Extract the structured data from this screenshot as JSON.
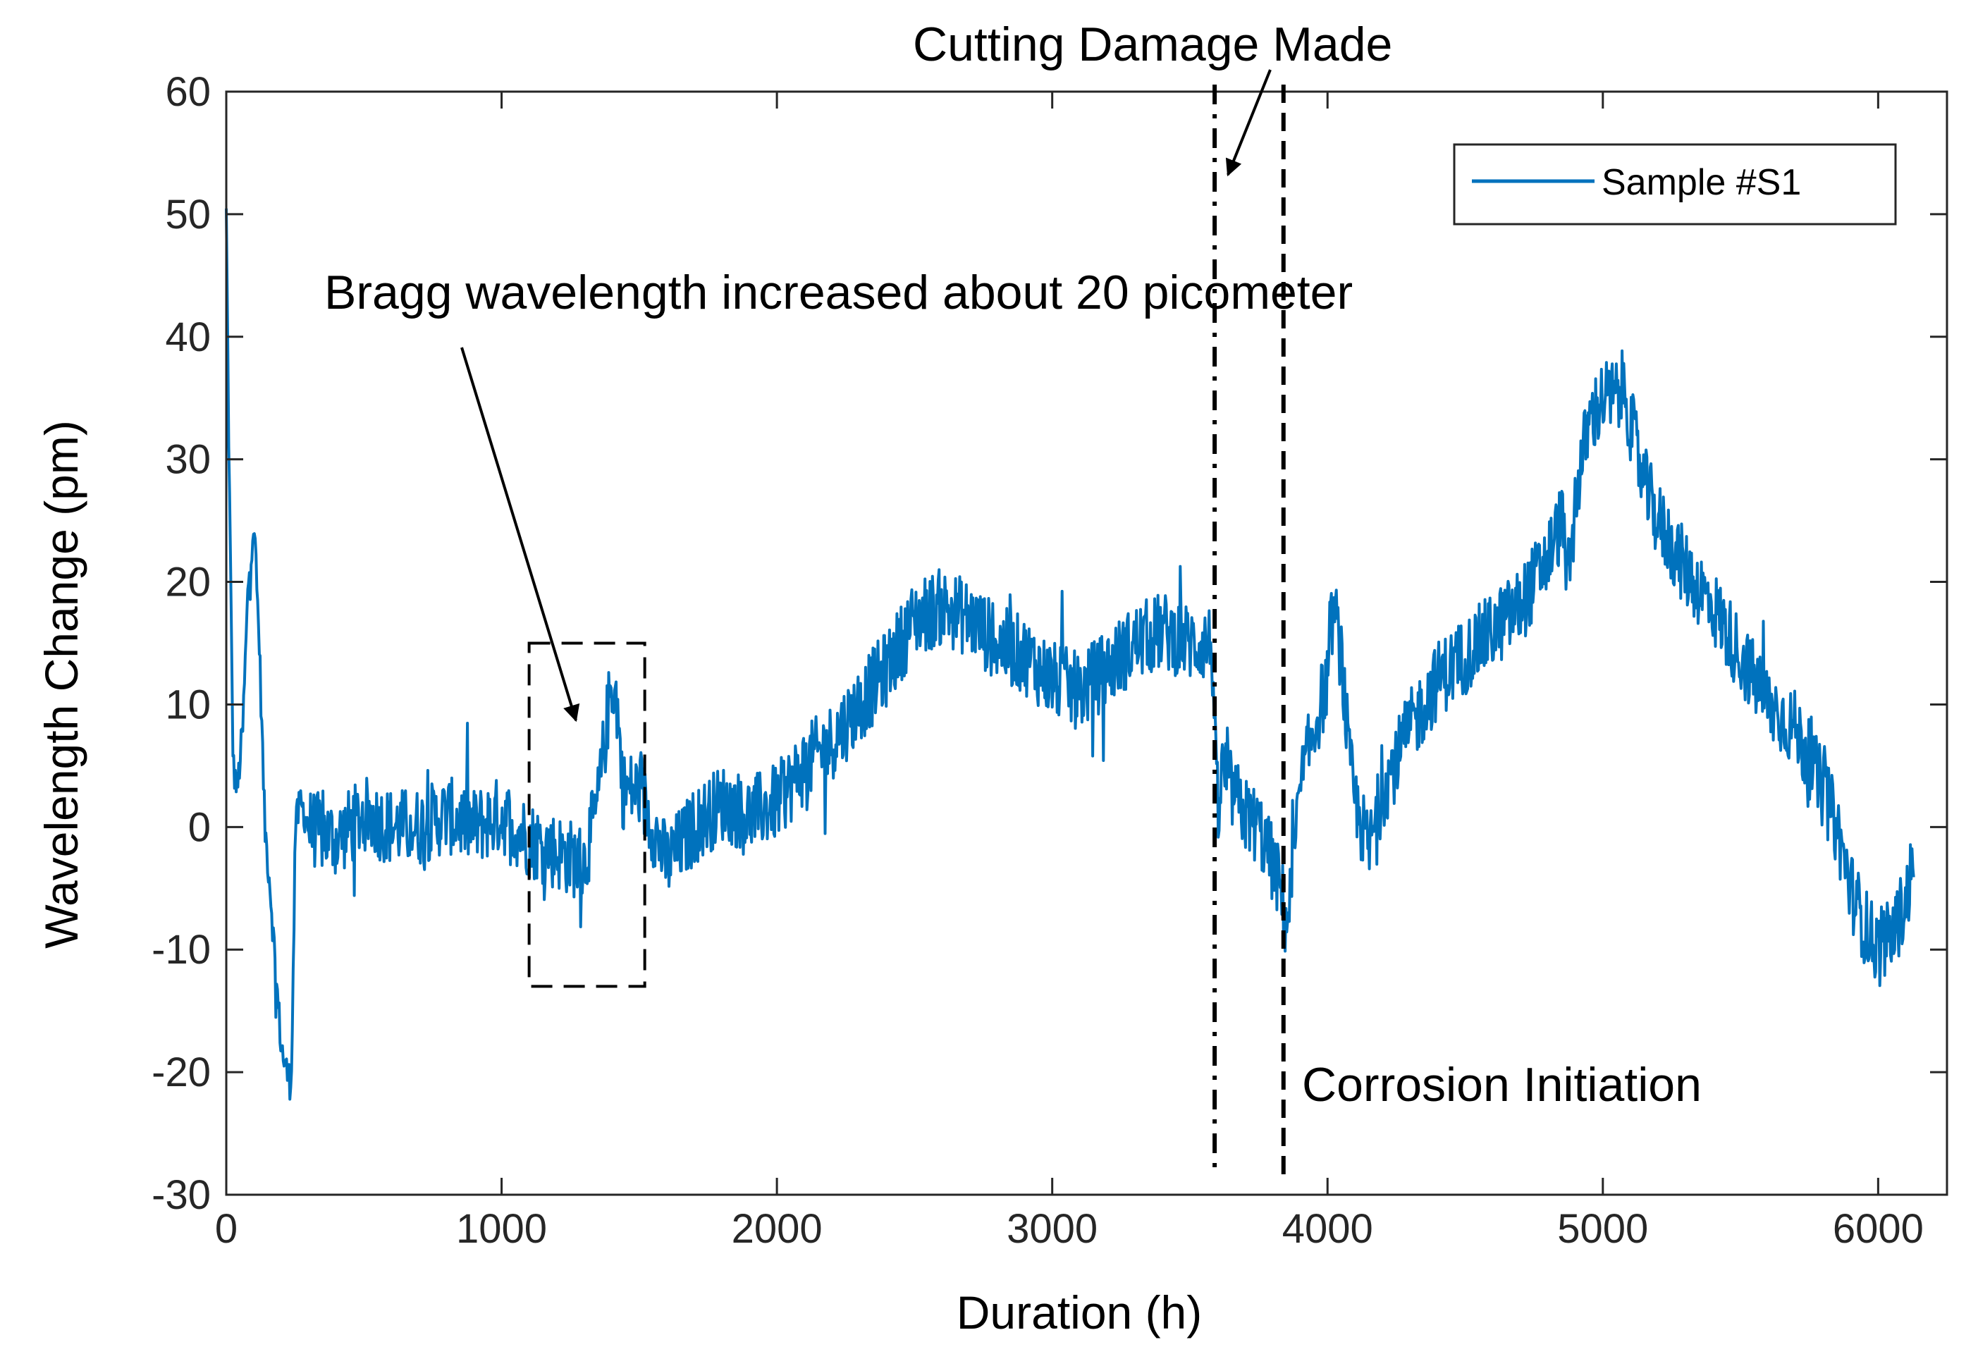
{
  "chart_data": {
    "type": "line",
    "title": "",
    "xlabel": "Duration (h)",
    "ylabel": "Wavelength Change (pm)",
    "xlim": [
      0,
      6250
    ],
    "ylim": [
      -30,
      60
    ],
    "x_ticks": [
      0,
      1000,
      2000,
      3000,
      4000,
      5000,
      6000
    ],
    "y_ticks": [
      -30,
      -20,
      -10,
      0,
      10,
      20,
      30,
      40,
      50,
      60
    ],
    "grid": false,
    "legend_position": "top-right",
    "series": [
      {
        "name": "Sample #S1",
        "color": "#0072BD",
        "x": [
          0,
          10,
          25,
          40,
          60,
          80,
          100,
          120,
          140,
          160,
          180,
          200,
          220,
          235,
          245,
          250,
          270,
          300,
          400,
          500,
          600,
          700,
          800,
          900,
          1000,
          1100,
          1200,
          1300,
          1350,
          1380,
          1400,
          1420,
          1440,
          1500,
          1550,
          1600,
          1700,
          1800,
          1900,
          2000,
          2100,
          2200,
          2300,
          2400,
          2500,
          2600,
          2700,
          2800,
          2900,
          3000,
          3100,
          3200,
          3300,
          3400,
          3500,
          3580,
          3600,
          3620,
          3650,
          3700,
          3750,
          3800,
          3830,
          3850,
          3870,
          3900,
          3950,
          4000,
          4020,
          4050,
          4080,
          4100,
          4150,
          4200,
          4300,
          4400,
          4500,
          4600,
          4700,
          4800,
          4850,
          4880,
          4900,
          4950,
          5000,
          5050,
          5080,
          5100,
          5150,
          5200,
          5300,
          5400,
          5500,
          5600,
          5700,
          5800,
          5850,
          5900,
          5950,
          6000,
          6050,
          6100,
          6130
        ],
        "values": [
          50,
          30,
          5,
          3,
          8,
          20,
          25,
          15,
          0,
          -5,
          -12,
          -18,
          -20,
          -21,
          -10,
          0,
          2,
          0,
          -1,
          1,
          0,
          0,
          1,
          0,
          1,
          -1,
          -2,
          -3,
          2,
          8,
          12,
          10,
          3,
          3,
          0,
          -3,
          0,
          2,
          1,
          2,
          5,
          7,
          10,
          13,
          17,
          18,
          17,
          15,
          14,
          12,
          11,
          13,
          15,
          16,
          15,
          15,
          0,
          5,
          3,
          1,
          0,
          -3,
          -5,
          -8,
          -5,
          3,
          8,
          12,
          18,
          14,
          5,
          2,
          -2,
          3,
          8,
          12,
          14,
          16,
          18,
          22,
          25,
          20,
          27,
          33,
          35,
          35,
          36,
          33,
          28,
          25,
          21,
          18,
          14,
          10,
          8,
          3,
          0,
          -5,
          -8,
          -10,
          -9,
          -6,
          -3
        ]
      }
    ],
    "annotations": {
      "bragg_text": "Bragg wavelength increased about 20 picometer",
      "cutting_text": "Cutting Damage Made",
      "corrosion_text": "Corrosion Initiation",
      "cutting_x": 3590,
      "corrosion_x": 3840,
      "box_x": [
        1100,
        1520
      ],
      "box_y": [
        -13,
        15
      ]
    }
  }
}
